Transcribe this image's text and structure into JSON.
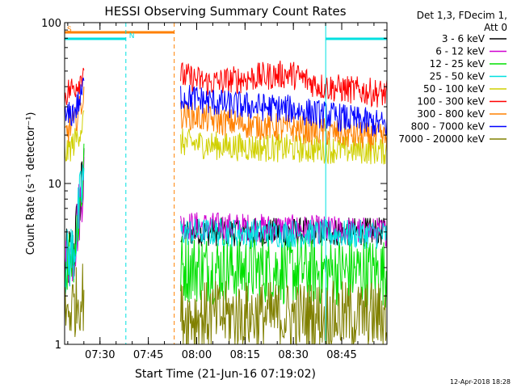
{
  "chart_data": {
    "type": "line",
    "title": "HESSI Observing Summary Count Rates",
    "xlabel": "Start Time (21-Jun-16 07:19:02)",
    "ylabel": "Count Rate (s⁻¹ detector⁻¹)",
    "x_unit": "minutes after 07:19:02",
    "xlim": [
      0,
      100
    ],
    "ylim": [
      1,
      100
    ],
    "y_scale": "log",
    "y_ticks": [
      {
        "value": 1,
        "label": "1"
      },
      {
        "value": 10,
        "label": "10"
      },
      {
        "value": 100,
        "label": "100"
      }
    ],
    "x_ticks": [
      {
        "value": 10.97,
        "label": "07:30"
      },
      {
        "value": 25.97,
        "label": "07:45"
      },
      {
        "value": 40.97,
        "label": "08:00"
      },
      {
        "value": 55.97,
        "label": "08:15"
      },
      {
        "value": 70.97,
        "label": "08:30"
      },
      {
        "value": 85.97,
        "label": "08:45"
      }
    ],
    "legend_header": [
      "Det 1,3, FDecim 1,",
      "Att 0"
    ],
    "legend_placement": "right",
    "series": [
      {
        "name": "3 - 6 keV",
        "color": "#000000",
        "segments": [
          {
            "x": [
              0,
              3,
              5,
              6
            ],
            "y": [
              3.0,
              4.0,
              8.0,
              12.0
            ]
          },
          {
            "x": [
              36,
              100
            ],
            "y": [
              5.0,
              5.0
            ]
          }
        ]
      },
      {
        "name": "6 - 12 keV",
        "color": "#d000d0",
        "segments": [
          {
            "x": [
              0,
              3,
              5,
              6
            ],
            "y": [
              3.0,
              4.0,
              8.0,
              12.0
            ]
          },
          {
            "x": [
              36,
              100
            ],
            "y": [
              5.5,
              5.0
            ]
          }
        ]
      },
      {
        "name": "12 - 25 keV",
        "color": "#00e000",
        "segments": [
          {
            "x": [
              0,
              3,
              5,
              6
            ],
            "y": [
              3.0,
              4.0,
              8.0,
              12.0
            ]
          },
          {
            "x": [
              36,
              100
            ],
            "y": [
              3.0,
              2.8
            ]
          }
        ]
      },
      {
        "name": "25 - 50 keV",
        "color": "#00e0e0",
        "segments": [
          {
            "x": [
              0,
              3,
              5,
              6
            ],
            "y": [
              3.0,
              4.0,
              8.0,
              12.0
            ]
          },
          {
            "x": [
              36,
              100
            ],
            "y": [
              5.0,
              4.8
            ]
          }
        ]
      },
      {
        "name": "50 - 100 keV",
        "color": "#d0d000",
        "segments": [
          {
            "x": [
              0,
              3,
              5,
              6
            ],
            "y": [
              15.0,
              18.0,
              22.0,
              25.0
            ]
          },
          {
            "x": [
              36,
              50,
              70,
              100
            ],
            "y": [
              18.0,
              17.0,
              16.5,
              16.0
            ]
          }
        ]
      },
      {
        "name": "100 - 300 keV",
        "color": "#ff0000",
        "segments": [
          {
            "x": [
              0,
              3,
              5,
              6
            ],
            "y": [
              36.0,
              40.0,
              45.0,
              55.0
            ]
          },
          {
            "x": [
              36,
              45,
              60,
              70,
              80,
              100
            ],
            "y": [
              47.0,
              42.0,
              46.0,
              48.0,
              40.0,
              36.0
            ]
          }
        ]
      },
      {
        "name": "300 - 800 keV",
        "color": "#ff8000",
        "segments": [
          {
            "x": [
              0,
              3,
              5,
              6
            ],
            "y": [
              20.0,
              24.0,
              30.0,
              36.0
            ]
          },
          {
            "x": [
              36,
              50,
              70,
              100
            ],
            "y": [
              27.0,
              24.0,
              22.0,
              19.0
            ]
          }
        ]
      },
      {
        "name": "800 - 7000 keV",
        "color": "#0000ff",
        "segments": [
          {
            "x": [
              0,
              3,
              5,
              6
            ],
            "y": [
              25.0,
              28.0,
              34.0,
              42.0
            ]
          },
          {
            "x": [
              36,
              50,
              70,
              100
            ],
            "y": [
              35.0,
              31.0,
              29.0,
              23.0
            ]
          }
        ]
      },
      {
        "name": "7000 - 20000 keV",
        "color": "#808000",
        "segments": [
          {
            "x": [
              0,
              3,
              5,
              6
            ],
            "y": [
              1.5,
              1.8,
              2.0,
              2.0
            ]
          },
          {
            "x": [
              36,
              100
            ],
            "y": [
              1.5,
              1.5
            ]
          }
        ]
      }
    ],
    "flags": [
      {
        "label": "S",
        "color": "#ff8000",
        "x_start": 0,
        "x_end": 34
      },
      {
        "label": "N",
        "color": "#00e0e0",
        "x_start": 0,
        "x_end": 19
      },
      {
        "label": "",
        "color": "#00e0e0",
        "x_start": 81,
        "x_end": 100
      }
    ],
    "vertical_lines": [
      {
        "x": 19,
        "color": "#00e0e0",
        "style": "dashed"
      },
      {
        "x": 34,
        "color": "#ff8000",
        "style": "dashed"
      },
      {
        "x": 81,
        "color": "#00e0e0",
        "style": "solid"
      },
      {
        "x": 100,
        "color": "#00e0e0",
        "style": "dashed"
      }
    ]
  },
  "footer": {
    "timestamp": "12-Apr-2018 18:28"
  }
}
